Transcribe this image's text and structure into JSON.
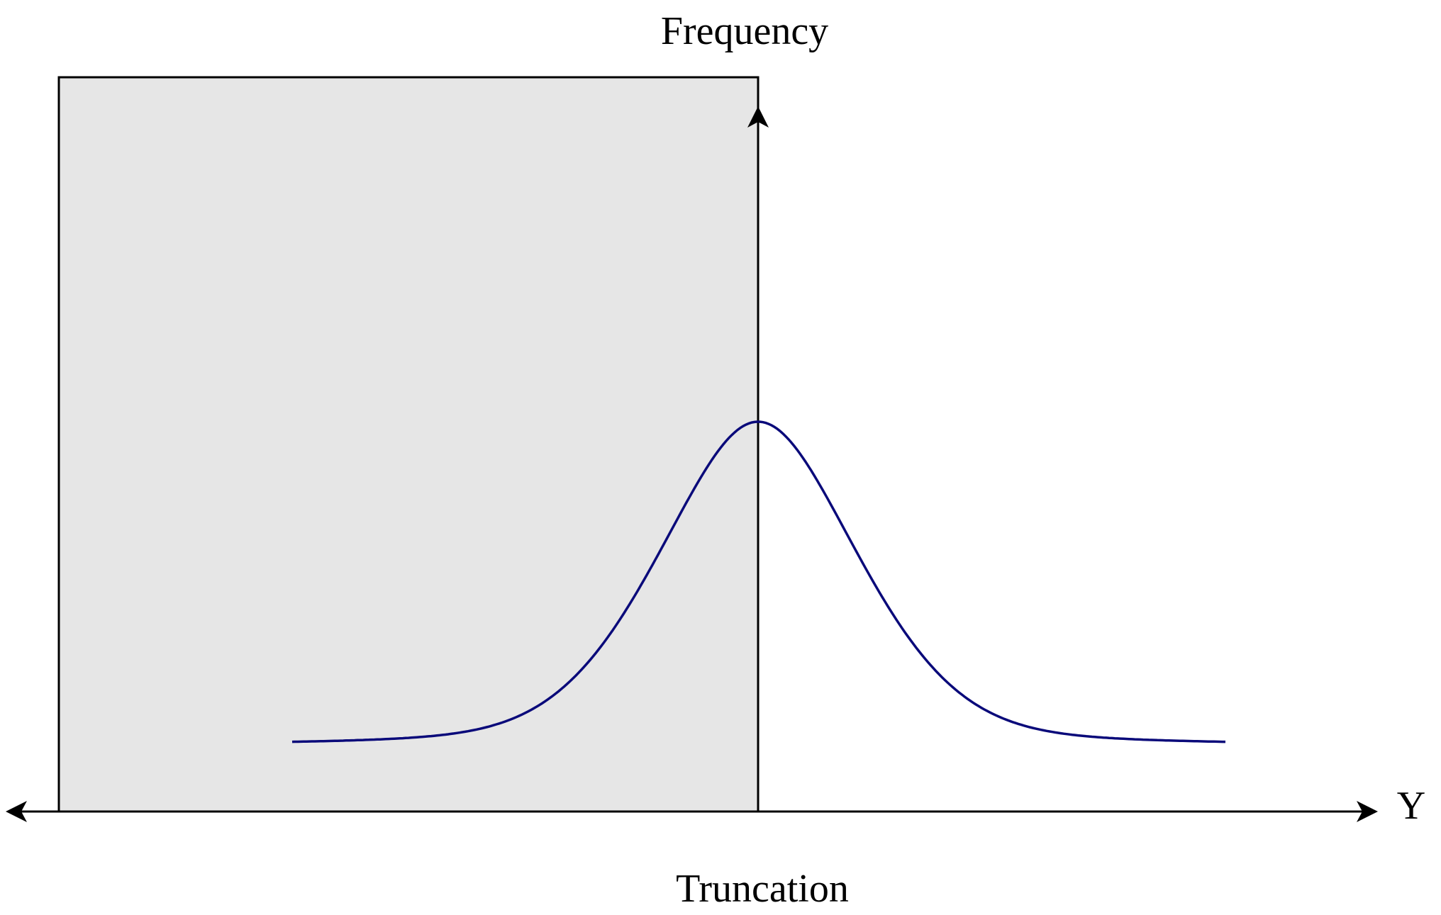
{
  "labels": {
    "vertical_axis": "Frequency",
    "horizontal_axis": "Y",
    "cutoff": "Truncation"
  }
}
